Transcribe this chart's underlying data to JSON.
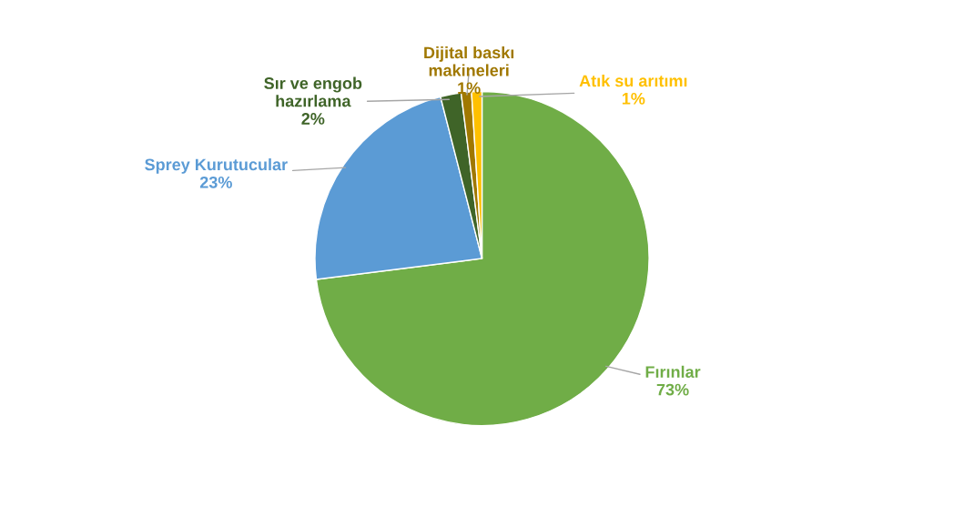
{
  "chart_data": {
    "type": "pie",
    "categories": [
      "Fırınlar",
      "Sprey Kurutucular",
      "Sır ve engob\nhazırlama",
      "Dijital baskı\nmakineleri",
      "Atık su arıtımı"
    ],
    "values": [
      73,
      23,
      2,
      1,
      1
    ],
    "colors": [
      "#70ad47",
      "#5b9bd5",
      "#3f6428",
      "#a07800",
      "#ffc000"
    ],
    "value_labels": [
      "73%",
      "23%",
      "2%",
      "1%",
      "1%"
    ],
    "legend": false
  }
}
